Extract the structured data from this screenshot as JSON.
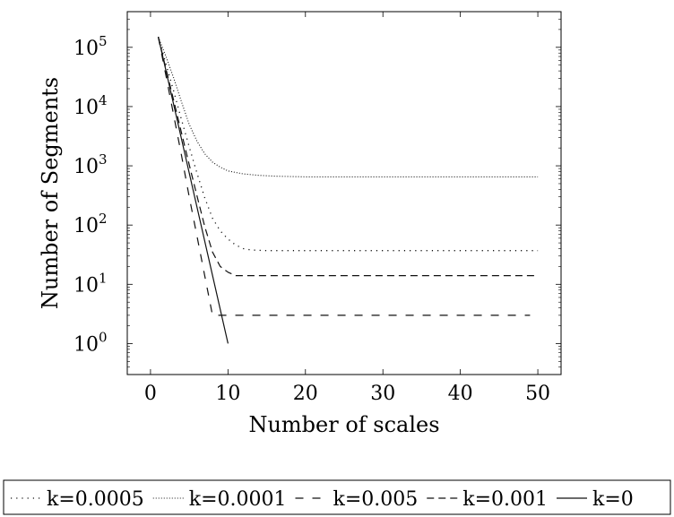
{
  "chart_data": {
    "type": "line",
    "title": "",
    "xlabel": "Number of scales",
    "ylabel": "Number of Segments",
    "xlim": [
      -3,
      53
    ],
    "ylim": [
      0.3,
      400000
    ],
    "yscale": "log",
    "x_ticks": [
      0,
      10,
      20,
      30,
      40,
      50
    ],
    "y_ticks": [
      {
        "value": 1,
        "label_base": "10",
        "label_exp": "0"
      },
      {
        "value": 10,
        "label_base": "10",
        "label_exp": "1"
      },
      {
        "value": 100,
        "label_base": "10",
        "label_exp": "2"
      },
      {
        "value": 1000,
        "label_base": "10",
        "label_exp": "3"
      },
      {
        "value": 10000,
        "label_base": "10",
        "label_exp": "4"
      },
      {
        "value": 100000,
        "label_base": "10",
        "label_exp": "5"
      }
    ],
    "grid": false,
    "legend_position": "bottom",
    "series": [
      {
        "name": "k=0.0005",
        "style": "dotted-sparse",
        "x": [
          1,
          2,
          3,
          4,
          5,
          6,
          7,
          8,
          9,
          10,
          11,
          12,
          13,
          15,
          20,
          30,
          40,
          50
        ],
        "y": [
          150000,
          52000,
          18000,
          6000,
          2100,
          750,
          290,
          130,
          80,
          58,
          46,
          40,
          38,
          37,
          37,
          37,
          37,
          37
        ]
      },
      {
        "name": "k=0.0001",
        "style": "dotted-dense",
        "x": [
          1,
          2,
          3,
          4,
          5,
          6,
          7,
          8,
          9,
          10,
          12,
          14,
          16,
          20,
          25,
          30,
          40,
          50
        ],
        "y": [
          150000,
          70000,
          30000,
          12000,
          5000,
          2600,
          1600,
          1150,
          950,
          820,
          730,
          690,
          670,
          650,
          650,
          650,
          650,
          650
        ]
      },
      {
        "name": "k=0.005",
        "style": "dashed-loose",
        "x": [
          1,
          2,
          3,
          4,
          5,
          6,
          7,
          8,
          9,
          10,
          20,
          30,
          40,
          49
        ],
        "y": [
          150000,
          33000,
          7000,
          1500,
          300,
          65,
          14,
          3,
          3,
          3,
          3,
          3,
          3,
          3
        ]
      },
      {
        "name": "k=0.001",
        "style": "dashed",
        "x": [
          1,
          2,
          3,
          4,
          5,
          6,
          7,
          8,
          9,
          10,
          11,
          15,
          20,
          30,
          40,
          50
        ],
        "y": [
          150000,
          43000,
          12500,
          3600,
          1050,
          310,
          95,
          35,
          20,
          16,
          14,
          14,
          14,
          14,
          14,
          14
        ]
      },
      {
        "name": "k=0",
        "style": "solid",
        "x": [
          1,
          10
        ],
        "y": [
          150000,
          1
        ]
      }
    ]
  }
}
